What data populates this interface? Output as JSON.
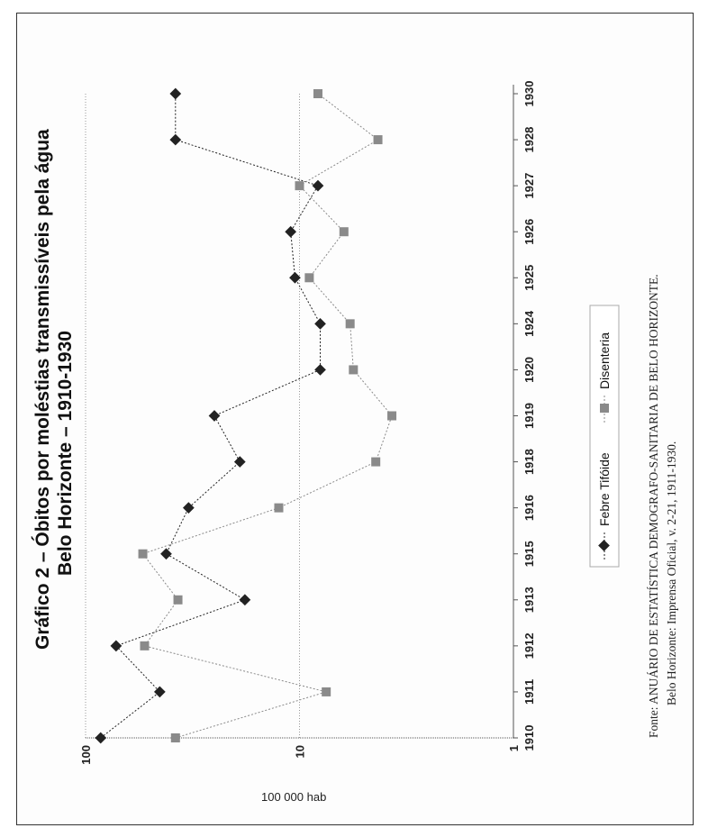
{
  "chart_data": {
    "type": "line",
    "title": "Gráfico 2 – Óbitos por moléstias transmissíveis pela água",
    "subtitle": "Belo Horizonte – 1910-1930",
    "ylabel": "100 000 hab",
    "xlabel": "",
    "y_scale": "log",
    "ylim": [
      1,
      100
    ],
    "y_ticks": [
      "100",
      "10",
      "1"
    ],
    "y_tick_values": [
      100,
      10,
      1
    ],
    "grid": "horizontal",
    "legend_position": "bottom",
    "categories": [
      "1910",
      "1911",
      "1912",
      "1913",
      "1915",
      "1916",
      "1918",
      "1919",
      "1920",
      "1924",
      "1925",
      "1926",
      "1927",
      "1928",
      "1930"
    ],
    "series": [
      {
        "name": "Febre Tifóide",
        "marker": "diamond",
        "color": "#222222",
        "values": [
          85,
          45,
          72,
          18,
          42,
          33,
          19,
          25,
          8,
          8,
          10.5,
          11,
          8.2,
          38,
          38
        ]
      },
      {
        "name": "Disenteria",
        "marker": "square",
        "color": "#8a8a8a",
        "values": [
          38,
          7.5,
          53,
          37,
          54,
          12.5,
          4.4,
          3.7,
          5.6,
          5.8,
          9,
          6.2,
          10,
          4.3,
          8.2
        ]
      }
    ]
  },
  "source": {
    "line1": "Fonte: ANUÁRIO DE ESTATÍSTICA DEMOGRAFO-SANITARIA DE BELO HORIZONTE.",
    "line2": "Belo Horizonte: Imprensa Oficial, v. 2-21, 1911-1930."
  },
  "colors": {
    "grid": "#999999",
    "axis": "#555555",
    "frame": "#333333"
  }
}
